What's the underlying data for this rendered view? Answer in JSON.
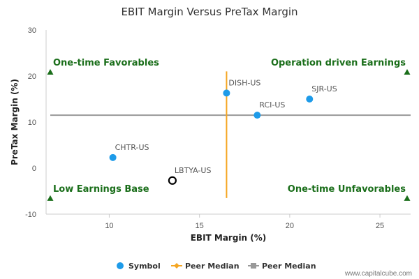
{
  "chart_data": {
    "type": "scatter",
    "title": "EBIT Margin Versus PreTax Margin",
    "xlabel": "EBIT Margin (%)",
    "ylabel": "PreTax Margin (%)",
    "xlim": [
      6.5,
      26.7
    ],
    "ylim": [
      -10,
      30
    ],
    "xticks": [
      10,
      15,
      20,
      25
    ],
    "yticks": [
      30,
      20,
      10,
      0,
      -10
    ],
    "series": [
      {
        "name": "Symbol",
        "color": "#1e9be9",
        "points": [
          {
            "label": "DISH-US",
            "x": 16.5,
            "y": 16.3
          },
          {
            "label": "SJR-US",
            "x": 21.1,
            "y": 15.0
          },
          {
            "label": "RCI-US",
            "x": 18.2,
            "y": 11.5
          },
          {
            "label": "CHTR-US",
            "x": 10.2,
            "y": 2.3
          }
        ]
      },
      {
        "name": "LBTYA-US",
        "color": "#000000",
        "hollow": true,
        "points": [
          {
            "label": "LBTYA-US",
            "x": 13.5,
            "y": -2.7
          }
        ]
      }
    ],
    "peer_median_x": {
      "name": "Peer Median",
      "value": 16.5,
      "y_range": [
        -6.5,
        21
      ],
      "color": "#f5a623"
    },
    "peer_median_y": {
      "name": "Peer Median",
      "value": 11.5,
      "color": "#999999"
    },
    "quadrants": [
      {
        "label": "One-time Favorables",
        "pos": "top-left"
      },
      {
        "label": "Operation driven Earnings",
        "pos": "top-right"
      },
      {
        "label": "Low Earnings Base",
        "pos": "bottom-left"
      },
      {
        "label": "One-time Unfavorables",
        "pos": "bottom-right"
      }
    ],
    "legend": [
      {
        "label": "Symbol",
        "color": "#1e9be9",
        "shape": "circle"
      },
      {
        "label": "Peer Median",
        "color": "#f5a623",
        "shape": "diamond-line"
      },
      {
        "label": "Peer Median",
        "color": "#999999",
        "shape": "square-line"
      }
    ],
    "credit": "www.capitalcube.com"
  }
}
